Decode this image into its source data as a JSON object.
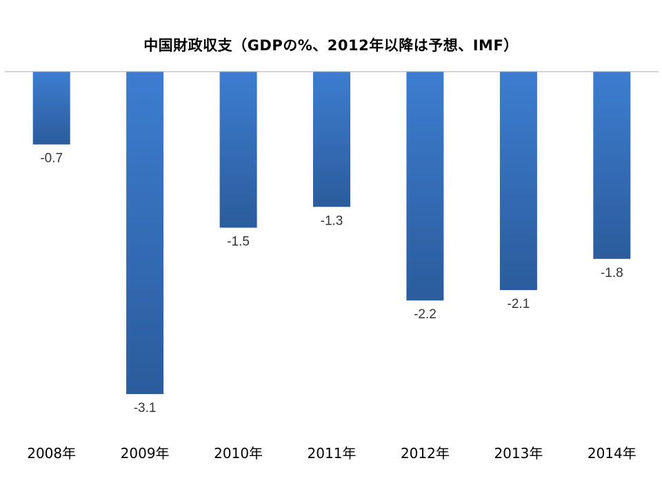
{
  "chart_data": {
    "type": "bar",
    "title": "中国財政収支（GDPの%、2012年以降は予想、IMF）",
    "categories": [
      "2008年",
      "2009年",
      "2010年",
      "2011年",
      "2012年",
      "2013年",
      "2014年"
    ],
    "values": [
      -0.7,
      -3.1,
      -1.5,
      -1.3,
      -2.2,
      -2.1,
      -1.8
    ],
    "data_labels": [
      "-0.7",
      "-3.1",
      "-1.5",
      "-1.3",
      "-2.2",
      "-2.1",
      "-1.8"
    ],
    "xlabel": "",
    "ylabel": "",
    "ylim": [
      -3.1,
      0
    ],
    "grid": false,
    "legend": "none",
    "bar_color_top": "#3d7dd0",
    "bar_color_bottom": "#2b5c9c",
    "axis_color": "#a6a6a6"
  }
}
